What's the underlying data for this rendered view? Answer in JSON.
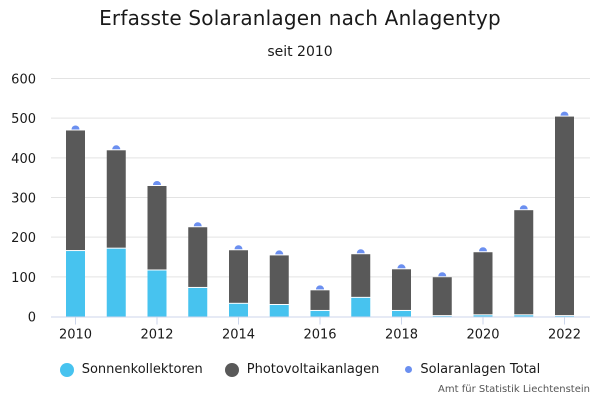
{
  "chart_data": {
    "type": "bar",
    "stacked": true,
    "title": "Erfasste Solaranlagen nach Anlagentyp",
    "subtitle": "seit 2010",
    "xlabel": "",
    "ylabel": "",
    "ylim": [
      0,
      600
    ],
    "yticks": [
      0,
      100,
      200,
      300,
      400,
      500,
      600
    ],
    "xtick_labels": [
      "2010",
      "2012",
      "2014",
      "2016",
      "2018",
      "2020",
      "2022"
    ],
    "categories": [
      "2010",
      "2011",
      "2012",
      "2013",
      "2014",
      "2015",
      "2016",
      "2017",
      "2018",
      "2019",
      "2020",
      "2021",
      "2022"
    ],
    "series": [
      {
        "name": "Sonnenkollektoren",
        "kind": "bar",
        "color": "#47c3ef",
        "values": [
          165,
          171,
          116,
          72,
          32,
          29,
          14,
          47,
          14,
          1,
          3,
          3,
          1
        ]
      },
      {
        "name": "Photovoltaikanlagen",
        "kind": "bar",
        "color": "#595959",
        "values": [
          304,
          248,
          213,
          153,
          135,
          125,
          52,
          110,
          105,
          98,
          159,
          265,
          503
        ]
      },
      {
        "name": "Solaranlagen Total",
        "kind": "marker",
        "color": "#6b8ff0",
        "values": [
          469,
          419,
          329,
          225,
          167,
          154,
          66,
          157,
          119,
          99,
          162,
          268,
          504
        ]
      }
    ],
    "grid": true,
    "legend": "bottom-center",
    "source": "Amt für Statistik Liechtenstein"
  }
}
